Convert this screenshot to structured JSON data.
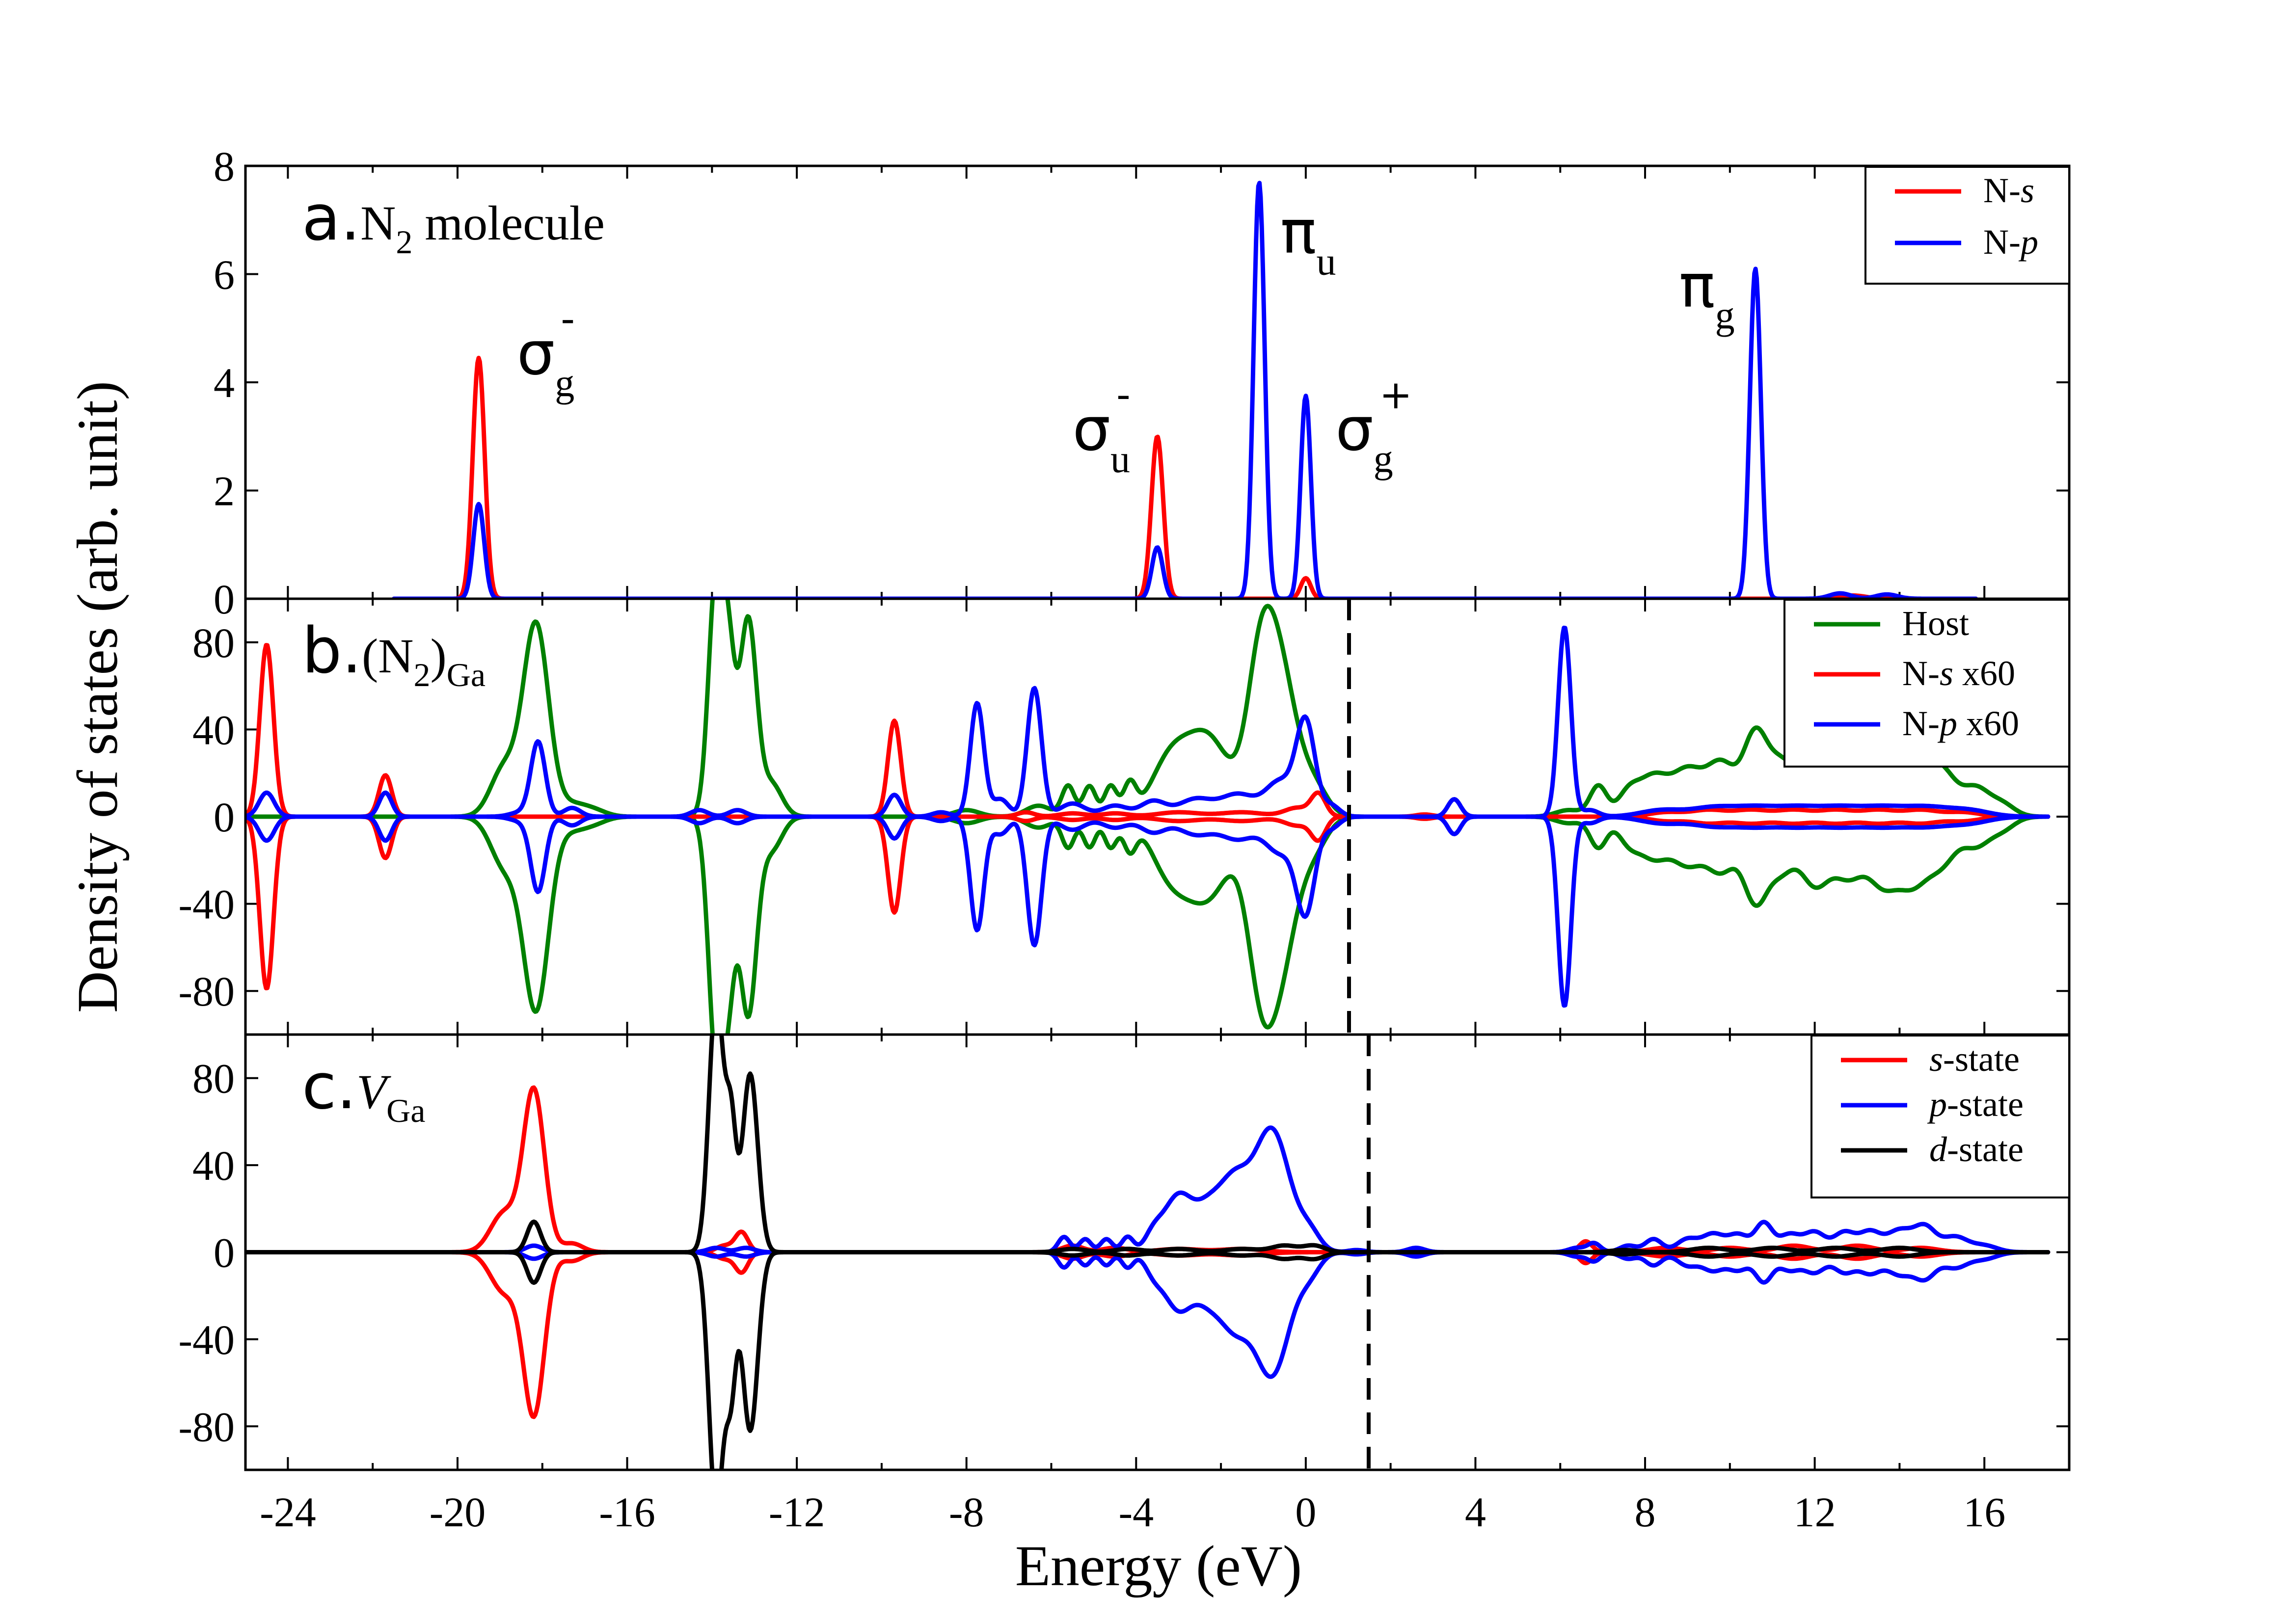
{
  "chart_data": {
    "type": "line",
    "xlabel": "Energy (eV)",
    "ylabel": "Density of states (arb. unit)",
    "xlim": [
      -25.0,
      18.0
    ],
    "xticks": [
      -24,
      -20,
      -16,
      -12,
      -8,
      -4,
      0,
      4,
      8,
      12,
      16
    ],
    "panels": [
      {
        "id": "a",
        "label_letter": "a.",
        "label_text": "N",
        "label_sub": "2",
        "label_rest": " molecule",
        "ylim": [
          0,
          8
        ],
        "yticks": [
          0,
          2,
          4,
          6,
          8
        ],
        "xrange": [
          -21.5,
          15.8
        ],
        "legend": [
          {
            "name": "N-",
            "italic": "s",
            "color": "#ff0000"
          },
          {
            "name": "N-",
            "italic": "p",
            "color": "#0000ff"
          }
        ],
        "series": [
          {
            "name": "N-s",
            "color": "#ff0000",
            "peaks": [
              [
                -19.5,
                4.45,
                0.14
              ],
              [
                -3.5,
                3.0,
                0.14
              ],
              [
                0.0,
                0.38,
                0.12
              ],
              [
                12.9,
                0.06,
                0.3
              ]
            ]
          },
          {
            "name": "N-p",
            "color": "#0000ff",
            "peaks": [
              [
                -19.5,
                1.75,
                0.13
              ],
              [
                -3.5,
                0.95,
                0.13
              ],
              [
                -1.1,
                7.7,
                0.13
              ],
              [
                0.0,
                3.75,
                0.12
              ],
              [
                10.6,
                6.1,
                0.13
              ],
              [
                12.6,
                0.1,
                0.25
              ],
              [
                13.7,
                0.08,
                0.25
              ]
            ]
          }
        ],
        "annotations": [
          {
            "main": "σ",
            "sub": "g",
            "sup": "-",
            "x": -18.6,
            "y": 4.15
          },
          {
            "main": "σ",
            "sub": "u",
            "sup": "-",
            "x": -5.5,
            "y": 2.75
          },
          {
            "main": "π",
            "sub": "u",
            "sup": "",
            "x": -0.6,
            "y": 6.4
          },
          {
            "main": "σ",
            "sub": "g",
            "sup": "+",
            "x": 0.7,
            "y": 2.75
          },
          {
            "main": "π",
            "sub": "g",
            "sup": "",
            "x": 8.8,
            "y": 5.4
          }
        ]
      },
      {
        "id": "b",
        "label_letter": "b.",
        "label_text": "(N",
        "label_sub": "2",
        "label_rest": ")",
        "label_sub2": "Ga",
        "ylim": [
          -100,
          100
        ],
        "yticks": [
          -80,
          -40,
          0,
          40,
          80
        ],
        "xrange": [
          -25.0,
          17.5
        ],
        "fermi": 1.0,
        "mirror": true,
        "legend": [
          {
            "name": "Host",
            "italic": "",
            "color": "#008000"
          },
          {
            "name": "N-",
            "italic": "s",
            "suffix": " x60",
            "color": "#ff0000"
          },
          {
            "name": "N-",
            "italic": "p",
            "suffix": " x60",
            "color": "#0000ff"
          }
        ],
        "series": [
          {
            "name": "Host",
            "color": "#008000",
            "peaks": [
              [
                -18.9,
                22,
                0.32
              ],
              [
                -18.15,
                88,
                0.3
              ],
              [
                -17.3,
                5,
                0.3
              ],
              [
                -16.8,
                3,
                0.3
              ],
              [
                -13.9,
                110,
                0.18
              ],
              [
                -13.6,
                60,
                0.15
              ],
              [
                -13.15,
                90,
                0.2
              ],
              [
                -12.6,
                15,
                0.25
              ],
              [
                -8.0,
                3,
                0.3
              ],
              [
                -6.3,
                5,
                0.3
              ],
              [
                -5.6,
                14,
                0.15
              ],
              [
                -5.1,
                14,
                0.15
              ],
              [
                -4.6,
                14,
                0.15
              ],
              [
                -4.15,
                14,
                0.15
              ],
              [
                -3.2,
                25,
                0.45
              ],
              [
                -2.3,
                35,
                0.5
              ],
              [
                -1.1,
                35,
                0.3
              ],
              [
                -0.7,
                75,
                0.45
              ],
              [
                0.25,
                10,
                0.3
              ],
              [
                6.2,
                3,
                0.3
              ],
              [
                6.9,
                14,
                0.2
              ],
              [
                7.6,
                10,
                0.25
              ],
              [
                8.2,
                18,
                0.35
              ],
              [
                9.0,
                20,
                0.35
              ],
              [
                9.8,
                24,
                0.35
              ],
              [
                10.6,
                36,
                0.28
              ],
              [
                11.2,
                22,
                0.3
              ],
              [
                12.0,
                30,
                0.35
              ],
              [
                12.8,
                25,
                0.35
              ],
              [
                13.6,
                28,
                0.35
              ],
              [
                14.3,
                27,
                0.35
              ],
              [
                15.0,
                20,
                0.35
              ],
              [
                15.8,
                12,
                0.3
              ],
              [
                16.4,
                6,
                0.3
              ]
            ]
          },
          {
            "name": "N-s x60",
            "color": "#ff0000",
            "peaks": [
              [
                -24.5,
                79,
                0.16
              ],
              [
                -21.7,
                19,
                0.15
              ],
              [
                -9.7,
                44,
                0.15
              ],
              [
                -6.6,
                2,
                0.2
              ],
              [
                -5.5,
                1.5,
                0.3
              ],
              [
                -4.5,
                1.5,
                0.3
              ],
              [
                -3.0,
                2,
                0.5
              ],
              [
                -1.5,
                2,
                0.5
              ],
              [
                -0.2,
                4,
                0.3
              ],
              [
                0.3,
                10,
                0.17
              ],
              [
                2.8,
                1,
                0.2
              ],
              [
                8.5,
                2,
                0.4
              ],
              [
                9.5,
                3,
                0.4
              ],
              [
                10.5,
                3,
                0.4
              ],
              [
                11.5,
                3,
                0.4
              ],
              [
                12.5,
                3,
                0.4
              ],
              [
                13.5,
                3,
                0.4
              ],
              [
                14.5,
                3,
                0.4
              ],
              [
                15.5,
                2,
                0.4
              ]
            ]
          },
          {
            "name": "N-p x60",
            "color": "#0000ff",
            "peaks": [
              [
                -24.5,
                11,
                0.18
              ],
              [
                -21.7,
                11,
                0.15
              ],
              [
                -18.5,
                2,
                0.25
              ],
              [
                -18.1,
                34,
                0.17
              ],
              [
                -17.3,
                4,
                0.2
              ],
              [
                -14.3,
                3,
                0.2
              ],
              [
                -13.4,
                3,
                0.2
              ],
              [
                -9.7,
                10,
                0.16
              ],
              [
                -8.6,
                2,
                0.2
              ],
              [
                -7.75,
                52,
                0.16
              ],
              [
                -7.2,
                8,
                0.2
              ],
              [
                -6.4,
                59,
                0.17
              ],
              [
                -5.5,
                6,
                0.3
              ],
              [
                -4.5,
                5,
                0.3
              ],
              [
                -3.6,
                7,
                0.3
              ],
              [
                -2.6,
                8,
                0.4
              ],
              [
                -1.6,
                10,
                0.4
              ],
              [
                -0.6,
                16,
                0.35
              ],
              [
                0.0,
                42,
                0.22
              ],
              [
                0.6,
                5,
                0.2
              ],
              [
                3.5,
                8,
                0.15
              ],
              [
                6.1,
                87,
                0.15
              ],
              [
                6.7,
                3,
                0.2
              ],
              [
                8.4,
                3,
                0.5
              ],
              [
                9.6,
                4,
                0.5
              ],
              [
                10.6,
                4,
                0.5
              ],
              [
                11.6,
                4,
                0.5
              ],
              [
                12.6,
                4,
                0.5
              ],
              [
                13.6,
                4,
                0.5
              ],
              [
                14.6,
                4,
                0.5
              ],
              [
                15.6,
                3,
                0.5
              ]
            ]
          }
        ]
      },
      {
        "id": "c",
        "label_letter": "c.",
        "label_text": "V",
        "label_sub": "Ga",
        "label_rest": "",
        "ylim": [
          -100,
          100
        ],
        "yticks": [
          -80,
          -40,
          0,
          40,
          80
        ],
        "xrange": [
          -25.0,
          17.5
        ],
        "fermi": 1.5,
        "mirror": true,
        "legend": [
          {
            "name": "",
            "italic": "s",
            "suffix": "-state",
            "color": "#ff0000"
          },
          {
            "name": "",
            "italic": "p",
            "suffix": "-state",
            "color": "#0000ff"
          },
          {
            "name": "",
            "italic": "d",
            "suffix": "-state",
            "color": "#000000"
          }
        ],
        "series": [
          {
            "name": "s-state",
            "color": "#ff0000",
            "peaks": [
              [
                -18.9,
                18,
                0.32
              ],
              [
                -18.2,
                74,
                0.25
              ],
              [
                -17.3,
                4,
                0.25
              ],
              [
                -13.7,
                3,
                0.2
              ],
              [
                -13.3,
                9,
                0.15
              ],
              [
                -5.5,
                3,
                0.25
              ],
              [
                -4.5,
                2,
                0.3
              ],
              [
                -3.0,
                1.5,
                0.5
              ],
              [
                -1.5,
                1.5,
                0.5
              ],
              [
                6.6,
                5,
                0.15
              ],
              [
                8.5,
                2,
                0.4
              ],
              [
                10.0,
                2,
                0.4
              ],
              [
                11.5,
                3,
                0.4
              ],
              [
                13.0,
                3,
                0.4
              ],
              [
                14.5,
                2,
                0.4
              ]
            ]
          },
          {
            "name": "p-state",
            "color": "#0000ff",
            "peaks": [
              [
                -18.2,
                3,
                0.2
              ],
              [
                -13.9,
                2,
                0.2
              ],
              [
                -13.2,
                2,
                0.2
              ],
              [
                -5.7,
                7,
                0.14
              ],
              [
                -5.2,
                6,
                0.14
              ],
              [
                -4.7,
                6,
                0.14
              ],
              [
                -4.2,
                7,
                0.14
              ],
              [
                -3.6,
                7,
                0.2
              ],
              [
                -3.0,
                26,
                0.35
              ],
              [
                -2.3,
                16,
                0.3
              ],
              [
                -1.7,
                30,
                0.35
              ],
              [
                -0.8,
                56,
                0.42
              ],
              [
                0.1,
                8,
                0.25
              ],
              [
                1.2,
                1,
                0.2
              ],
              [
                2.6,
                2,
                0.2
              ],
              [
                6.4,
                2,
                0.2
              ],
              [
                6.8,
                4,
                0.15
              ],
              [
                7.6,
                3,
                0.2
              ],
              [
                8.2,
                6,
                0.2
              ],
              [
                9.0,
                6,
                0.25
              ],
              [
                9.6,
                8,
                0.25
              ],
              [
                10.2,
                8,
                0.25
              ],
              [
                10.8,
                13,
                0.2
              ],
              [
                11.4,
                8,
                0.25
              ],
              [
                12.0,
                9,
                0.25
              ],
              [
                12.7,
                9,
                0.25
              ],
              [
                13.3,
                9,
                0.25
              ],
              [
                14.0,
                10,
                0.3
              ],
              [
                14.6,
                11,
                0.25
              ],
              [
                15.3,
                7,
                0.3
              ],
              [
                16.0,
                3,
                0.3
              ]
            ]
          },
          {
            "name": "d-state",
            "color": "#000000",
            "peaks": [
              [
                -18.2,
                14,
                0.16
              ],
              [
                -13.9,
                118,
                0.17
              ],
              [
                -13.55,
                55,
                0.12
              ],
              [
                -13.1,
                82,
                0.18
              ],
              [
                -5.5,
                1.5,
                0.3
              ],
              [
                -4.2,
                1.5,
                0.3
              ],
              [
                -3.0,
                1.5,
                0.4
              ],
              [
                -1.5,
                1.5,
                0.4
              ],
              [
                -0.5,
                3,
                0.3
              ],
              [
                0.2,
                3,
                0.25
              ],
              [
                7.5,
                1,
                0.3
              ],
              [
                9.5,
                2,
                0.4
              ],
              [
                11.0,
                2,
                0.4
              ],
              [
                12.5,
                2,
                0.4
              ],
              [
                14.0,
                2,
                0.4
              ]
            ]
          }
        ]
      }
    ]
  }
}
